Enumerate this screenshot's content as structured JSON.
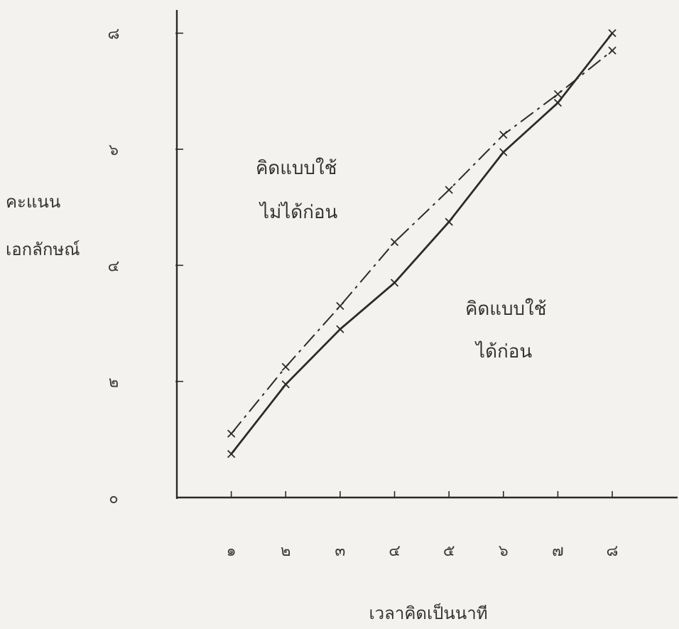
{
  "chart_data": {
    "type": "line",
    "x": [
      1,
      2,
      3,
      4,
      5,
      6,
      7,
      8
    ],
    "x_tick_labels": [
      "๑",
      "๒",
      "๓",
      "๔",
      "๕",
      "๖",
      "๗",
      "๘"
    ],
    "y_ticks": [
      0,
      2,
      4,
      6,
      8
    ],
    "y_tick_labels": [
      "๐",
      "๒",
      "๔",
      "๖",
      "๘"
    ],
    "xlim": [
      0,
      9.2
    ],
    "ylim": [
      0,
      8.4
    ],
    "xlabel": "เวลาคิดเป็นนาที",
    "ylabel": [
      "คะแนน",
      "เอกลักษณ์"
    ],
    "grid": false,
    "series": [
      {
        "name": "คิดแบบใช้ไม่ได้ก่อน",
        "line_style": "dashed",
        "values": [
          1.1,
          2.25,
          3.3,
          4.4,
          5.3,
          6.25,
          6.95,
          7.7
        ]
      },
      {
        "name": "คิดแบบใช้ได้ก่อน",
        "line_style": "solid",
        "values": [
          0.75,
          1.95,
          2.9,
          3.7,
          4.75,
          5.95,
          6.8,
          8.0
        ]
      }
    ],
    "annotations": [
      {
        "lines": [
          "คิดแบบใช้",
          "ไม่ได้ก่อน"
        ]
      },
      {
        "lines": [
          "คิดแบบใช้",
          "ได้ก่อน"
        ]
      }
    ],
    "colors": {
      "ink": "#2b2b2b",
      "paper": "#f3f2ee"
    }
  }
}
